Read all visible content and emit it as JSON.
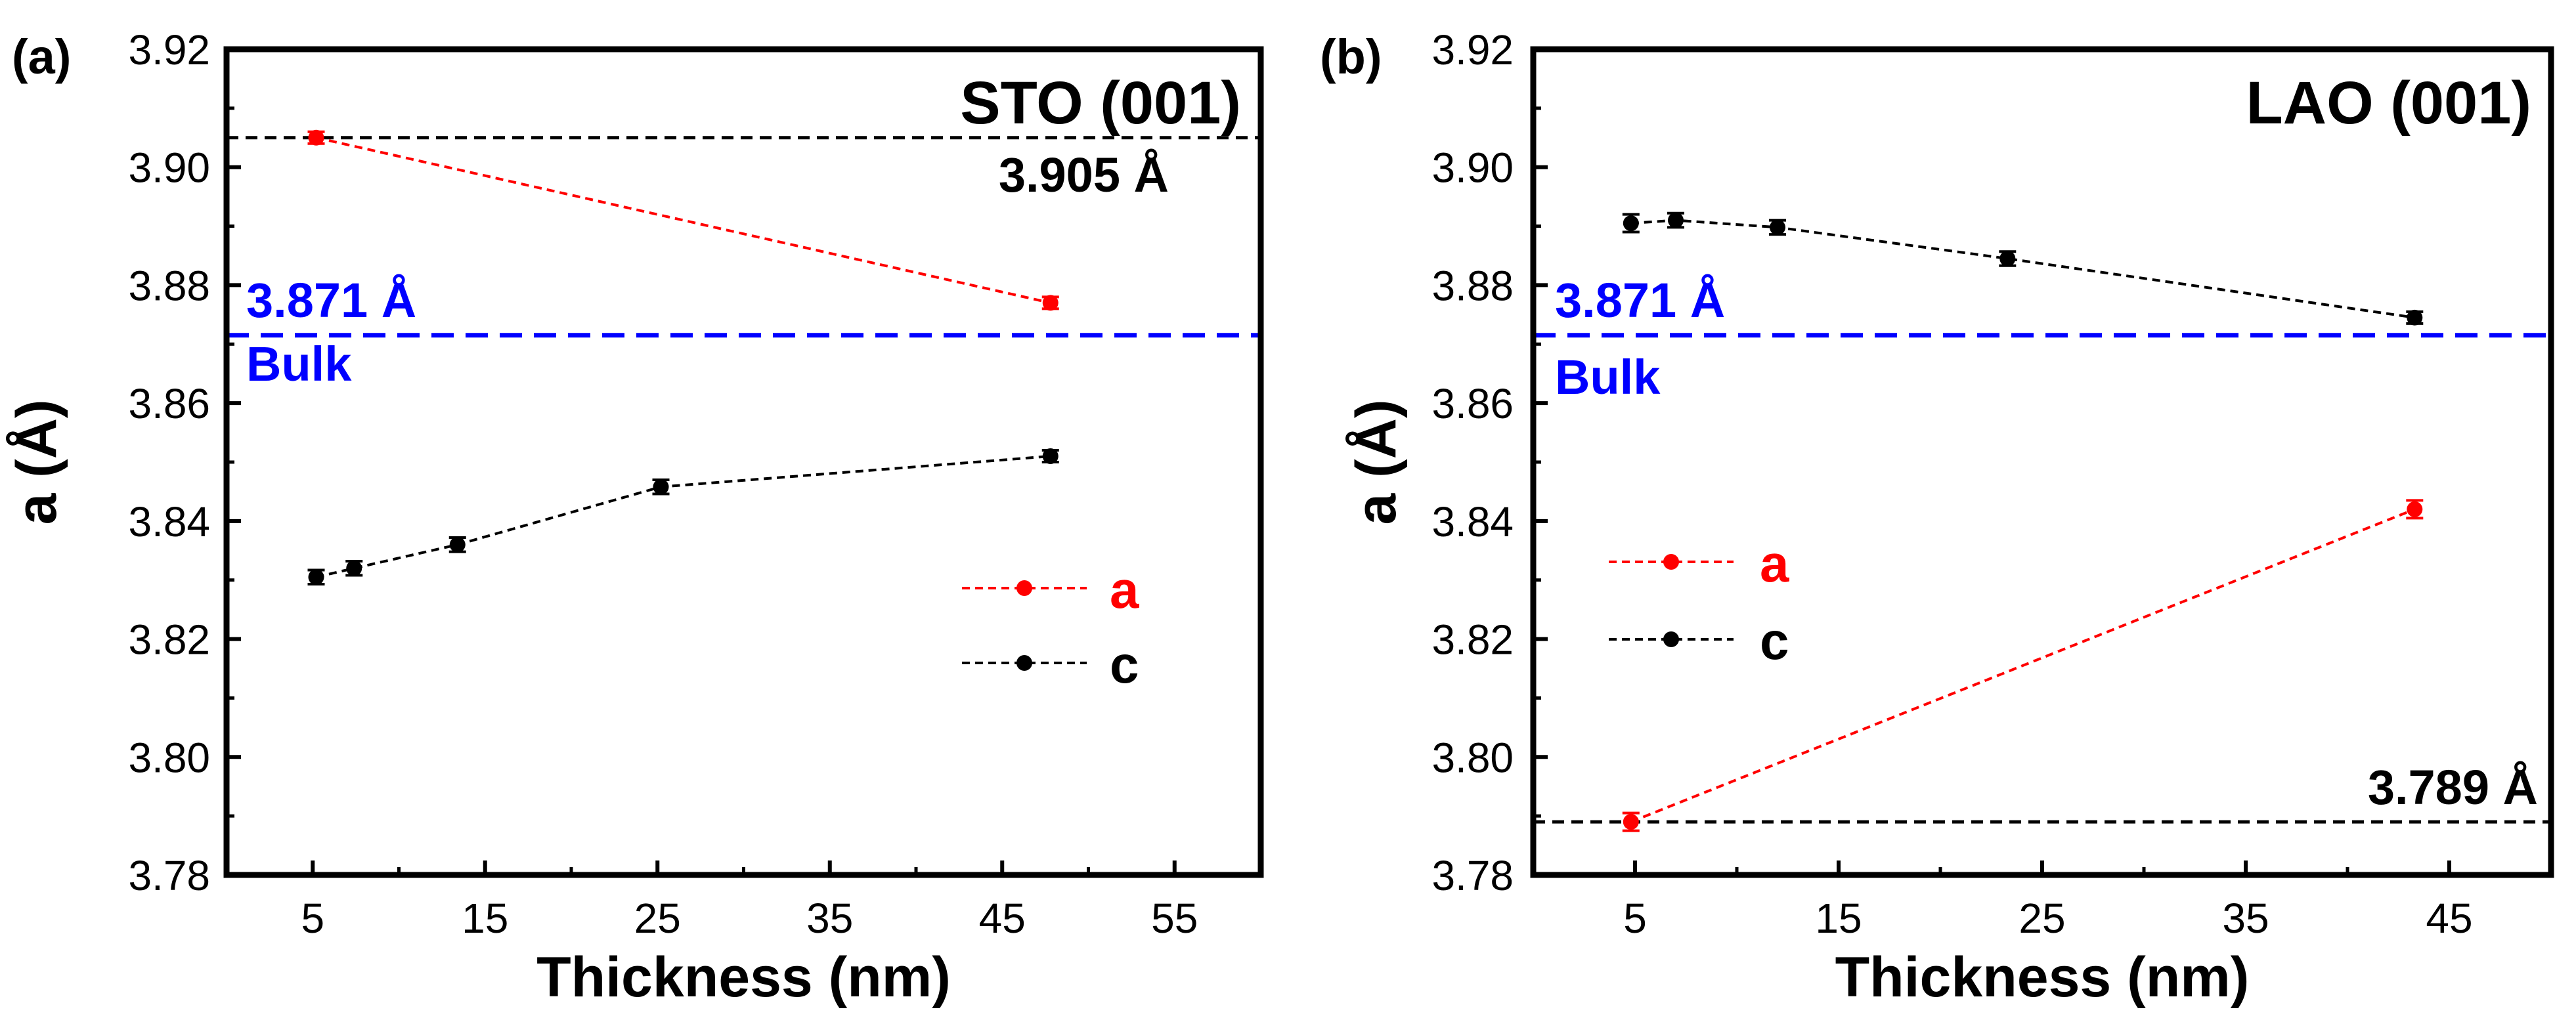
{
  "colors": {
    "a": "#ff0000",
    "c": "#000000",
    "bulk": "#0000ff",
    "ref": "#000000",
    "frame": "#000000"
  },
  "chart_data": [
    {
      "type": "line",
      "panel_label": "(a)",
      "title": "STO (001)",
      "xlabel": "Thickness (nm)",
      "ylabel": "a (Å)",
      "xlim": [
        0,
        60
      ],
      "ylim": [
        3.78,
        3.92
      ],
      "xticks": [
        5,
        15,
        25,
        35,
        45,
        55
      ],
      "yticks": [
        3.78,
        3.8,
        3.82,
        3.84,
        3.86,
        3.88,
        3.9,
        3.92
      ],
      "ytick_labels": [
        "3.78",
        "3.80",
        "3.82",
        "3.84",
        "3.86",
        "3.88",
        "3.90",
        "3.92"
      ],
      "series": [
        {
          "name": "a",
          "color": "#ff0000",
          "x": [
            5.2,
            47.8
          ],
          "y": [
            3.905,
            3.877
          ],
          "err": [
            0.001,
            0.001
          ]
        },
        {
          "name": "c",
          "color": "#000000",
          "x": [
            5.2,
            7.4,
            13.4,
            25.2,
            47.8
          ],
          "y": [
            3.8305,
            3.832,
            3.836,
            3.8458,
            3.851
          ],
          "err": [
            0.0012,
            0.0012,
            0.0012,
            0.0012,
            0.001
          ]
        }
      ],
      "ref_lines": [
        {
          "y": 3.905,
          "color": "#000000",
          "label": "3.905 Å",
          "label_pos": "below-right"
        },
        {
          "y": 3.8715,
          "color": "#0000ff",
          "label": "3.871 Å",
          "sublabel": "Bulk",
          "label_pos": "left"
        }
      ],
      "legend": {
        "position": "center-right",
        "entries": [
          "a",
          "c"
        ]
      }
    },
    {
      "type": "line",
      "panel_label": "(b)",
      "title": "LAO (001)",
      "xlabel": "Thickness (nm)",
      "ylabel": "a (Å)",
      "xlim": [
        0,
        50
      ],
      "ylim": [
        3.78,
        3.92
      ],
      "xticks": [
        5,
        15,
        25,
        35,
        45
      ],
      "yticks": [
        3.78,
        3.8,
        3.82,
        3.84,
        3.86,
        3.88,
        3.9,
        3.92
      ],
      "ytick_labels": [
        "3.78",
        "3.80",
        "3.82",
        "3.84",
        "3.86",
        "3.88",
        "3.90",
        "3.92"
      ],
      "series": [
        {
          "name": "a",
          "color": "#ff0000",
          "x": [
            4.8,
            43.3
          ],
          "y": [
            3.789,
            3.842
          ],
          "err": [
            0.0015,
            0.0015
          ]
        },
        {
          "name": "c",
          "color": "#000000",
          "x": [
            4.8,
            7.0,
            12.0,
            23.3,
            43.3
          ],
          "y": [
            3.8905,
            3.891,
            3.8898,
            3.8845,
            3.8745
          ],
          "err": [
            0.0015,
            0.0012,
            0.0012,
            0.0012,
            0.001
          ]
        }
      ],
      "ref_lines": [
        {
          "y": 3.789,
          "color": "#000000",
          "label": "3.789 Å",
          "label_pos": "above-right"
        },
        {
          "y": 3.8715,
          "color": "#0000ff",
          "label": "3.871 Å",
          "sublabel": "Bulk",
          "label_pos": "left"
        }
      ],
      "legend": {
        "position": "center-left",
        "entries": [
          "a",
          "c"
        ]
      }
    }
  ]
}
